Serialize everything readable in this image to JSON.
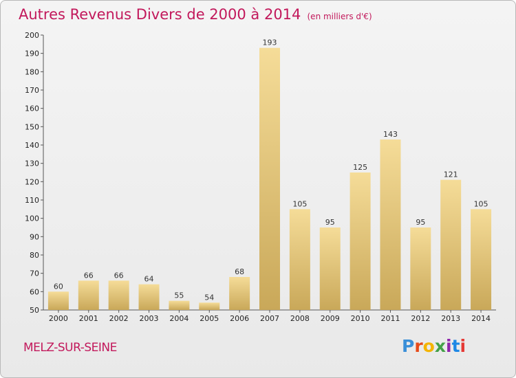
{
  "chart_data": {
    "type": "bar",
    "title": "Autres Revenus Divers de 2000 à 2014",
    "unit": "(en milliers d'€)",
    "categories": [
      "2000",
      "2001",
      "2002",
      "2003",
      "2004",
      "2005",
      "2006",
      "2007",
      "2008",
      "2009",
      "2010",
      "2011",
      "2012",
      "2013",
      "2014"
    ],
    "values": [
      60,
      66,
      66,
      64,
      55,
      54,
      68,
      193,
      105,
      95,
      125,
      143,
      95,
      121,
      105
    ],
    "ylim": [
      50,
      200
    ],
    "yticks": [
      50,
      60,
      70,
      80,
      90,
      100,
      110,
      120,
      130,
      140,
      150,
      160,
      170,
      180,
      190,
      200
    ],
    "grid": false,
    "bar_color_light": "#f5dc98",
    "bar_color_dark": "#c9a859"
  },
  "footer": {
    "commune": "MELZ-SUR-SEINE",
    "logo_letters": [
      "P",
      "r",
      "o",
      "x",
      "i",
      "t",
      "i"
    ],
    "logo_colors": [
      "#3a8fd8",
      "#e64a19",
      "#f4b400",
      "#43a047",
      "#8e24aa",
      "#1e88e5",
      "#e53935"
    ]
  },
  "accent_color": "#c2185b"
}
